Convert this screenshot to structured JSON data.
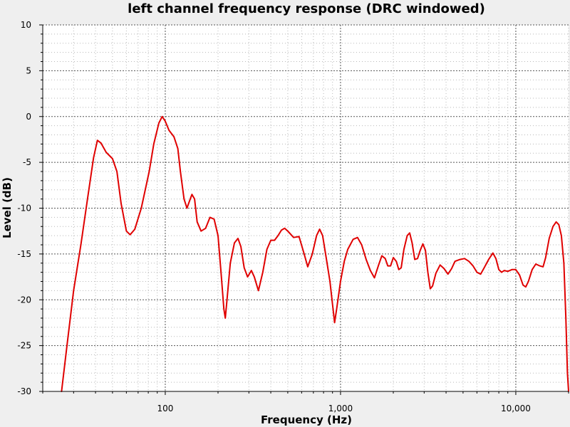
{
  "chart_data": {
    "type": "line",
    "title": "left channel frequency response (DRC windowed)",
    "xlabel": "Frequency (Hz)",
    "ylabel": "Level (dB)",
    "x_scale": "log",
    "xlim": [
      20,
      20000
    ],
    "ylim": [
      -30,
      10
    ],
    "grid": true,
    "x_tick_labels": [
      {
        "value": 100,
        "label": "100"
      },
      {
        "value": 1000,
        "label": "1,000"
      },
      {
        "value": 10000,
        "label": "10,000"
      }
    ],
    "y_tick_labels": [
      {
        "value": 10,
        "label": "10"
      },
      {
        "value": 5,
        "label": "5"
      },
      {
        "value": 0,
        "label": "0"
      },
      {
        "value": -5,
        "label": "-5"
      },
      {
        "value": -10,
        "label": "-10"
      },
      {
        "value": -15,
        "label": "-15"
      },
      {
        "value": -20,
        "label": "-20"
      },
      {
        "value": -25,
        "label": "-25"
      },
      {
        "value": -30,
        "label": "-30"
      }
    ],
    "series": [
      {
        "color": "#e00000",
        "points": [
          [
            25.6,
            -30
          ],
          [
            27.5,
            -25
          ],
          [
            30,
            -19
          ],
          [
            33,
            -14
          ],
          [
            36,
            -9
          ],
          [
            39,
            -4.5
          ],
          [
            41,
            -2.6
          ],
          [
            43,
            -2.9
          ],
          [
            46,
            -3.9
          ],
          [
            50,
            -4.6
          ],
          [
            53,
            -6
          ],
          [
            56,
            -9.5
          ],
          [
            60,
            -12.5
          ],
          [
            63,
            -12.9
          ],
          [
            67,
            -12.3
          ],
          [
            73,
            -10
          ],
          [
            81,
            -6
          ],
          [
            86,
            -3
          ],
          [
            92,
            -0.7
          ],
          [
            96,
            0
          ],
          [
            100,
            -0.5
          ],
          [
            105,
            -1.5
          ],
          [
            112,
            -2.2
          ],
          [
            118,
            -3.5
          ],
          [
            122,
            -6
          ],
          [
            128,
            -9
          ],
          [
            133,
            -10
          ],
          [
            137,
            -9.3
          ],
          [
            142,
            -8.5
          ],
          [
            147,
            -9
          ],
          [
            152,
            -11.5
          ],
          [
            160,
            -12.5
          ],
          [
            170,
            -12.2
          ],
          [
            180,
            -11
          ],
          [
            190,
            -11.2
          ],
          [
            200,
            -13
          ],
          [
            208,
            -17
          ],
          [
            216,
            -21
          ],
          [
            220,
            -22
          ],
          [
            225,
            -20
          ],
          [
            235,
            -16
          ],
          [
            248,
            -13.8
          ],
          [
            260,
            -13.3
          ],
          [
            270,
            -14.2
          ],
          [
            282,
            -16.5
          ],
          [
            295,
            -17.5
          ],
          [
            310,
            -16.8
          ],
          [
            322,
            -17.5
          ],
          [
            340,
            -19
          ],
          [
            360,
            -17
          ],
          [
            380,
            -14.5
          ],
          [
            400,
            -13.5
          ],
          [
            420,
            -13.5
          ],
          [
            440,
            -13
          ],
          [
            460,
            -12.4
          ],
          [
            480,
            -12.2
          ],
          [
            500,
            -12.5
          ],
          [
            540,
            -13.2
          ],
          [
            580,
            -13.1
          ],
          [
            620,
            -15
          ],
          [
            650,
            -16.4
          ],
          [
            690,
            -15
          ],
          [
            730,
            -13
          ],
          [
            760,
            -12.3
          ],
          [
            790,
            -13
          ],
          [
            830,
            -15.5
          ],
          [
            870,
            -18
          ],
          [
            900,
            -20.5
          ],
          [
            925,
            -22.5
          ],
          [
            950,
            -21
          ],
          [
            1000,
            -18
          ],
          [
            1050,
            -15.8
          ],
          [
            1100,
            -14.5
          ],
          [
            1180,
            -13.4
          ],
          [
            1250,
            -13.2
          ],
          [
            1320,
            -14
          ],
          [
            1400,
            -15.6
          ],
          [
            1480,
            -16.8
          ],
          [
            1560,
            -17.6
          ],
          [
            1650,
            -16.2
          ],
          [
            1720,
            -15.2
          ],
          [
            1800,
            -15.5
          ],
          [
            1860,
            -16.3
          ],
          [
            1930,
            -16.3
          ],
          [
            2000,
            -15.4
          ],
          [
            2080,
            -15.8
          ],
          [
            2150,
            -16.7
          ],
          [
            2220,
            -16.5
          ],
          [
            2300,
            -14.5
          ],
          [
            2400,
            -13
          ],
          [
            2480,
            -12.7
          ],
          [
            2560,
            -13.8
          ],
          [
            2650,
            -15.6
          ],
          [
            2750,
            -15.5
          ],
          [
            2850,
            -14.6
          ],
          [
            2950,
            -13.9
          ],
          [
            3050,
            -14.6
          ],
          [
            3150,
            -17
          ],
          [
            3250,
            -18.8
          ],
          [
            3350,
            -18.5
          ],
          [
            3500,
            -17.1
          ],
          [
            3700,
            -16.2
          ],
          [
            3900,
            -16.6
          ],
          [
            4100,
            -17.2
          ],
          [
            4300,
            -16.6
          ],
          [
            4500,
            -15.8
          ],
          [
            4800,
            -15.6
          ],
          [
            5100,
            -15.5
          ],
          [
            5400,
            -15.8
          ],
          [
            5700,
            -16.3
          ],
          [
            6000,
            -17
          ],
          [
            6300,
            -17.2
          ],
          [
            6600,
            -16.5
          ],
          [
            7000,
            -15.6
          ],
          [
            7400,
            -14.9
          ],
          [
            7700,
            -15.5
          ],
          [
            8000,
            -16.7
          ],
          [
            8300,
            -17
          ],
          [
            8600,
            -16.8
          ],
          [
            9000,
            -16.9
          ],
          [
            9500,
            -16.7
          ],
          [
            10000,
            -16.7
          ],
          [
            10500,
            -17.3
          ],
          [
            11000,
            -18.4
          ],
          [
            11400,
            -18.6
          ],
          [
            11800,
            -18
          ],
          [
            12400,
            -16.7
          ],
          [
            13000,
            -16.1
          ],
          [
            13700,
            -16.3
          ],
          [
            14300,
            -16.4
          ],
          [
            14800,
            -15.4
          ],
          [
            15500,
            -13.3
          ],
          [
            16300,
            -12
          ],
          [
            17000,
            -11.5
          ],
          [
            17600,
            -11.8
          ],
          [
            18200,
            -13
          ],
          [
            18800,
            -16
          ],
          [
            19300,
            -22
          ],
          [
            19700,
            -28
          ],
          [
            20000,
            -30
          ]
        ]
      }
    ]
  }
}
